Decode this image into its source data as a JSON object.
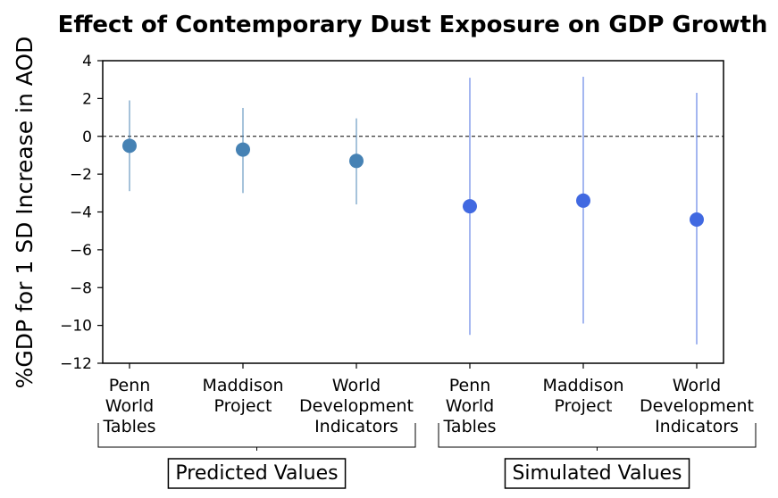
{
  "chart_data": {
    "type": "scatter",
    "title": "Effect of Contemporary Dust Exposure on GDP Growth",
    "ylabel": "%GDP for 1 SD Increase in AOD",
    "xlabel": "",
    "ylim": [
      -12,
      4
    ],
    "yticks": [
      4,
      2,
      0,
      -2,
      -4,
      -6,
      -8,
      -10,
      -12
    ],
    "categories": [
      [
        "Penn",
        "World",
        "Tables"
      ],
      [
        "Maddison",
        "Project"
      ],
      [
        "World",
        "Development",
        "Indicators"
      ],
      [
        "Penn",
        "World",
        "Tables"
      ],
      [
        "Maddison",
        "Project"
      ],
      [
        "World",
        "Development",
        "Indicators"
      ]
    ],
    "groups": [
      {
        "name": "Predicted Values",
        "members": [
          0,
          1,
          2
        ]
      },
      {
        "name": "Simulated Values",
        "members": [
          3,
          4,
          5
        ]
      }
    ],
    "series": [
      {
        "name": "Predicted Values",
        "color": "#4682b4",
        "points": [
          {
            "x": 0,
            "y": -0.5,
            "lo": -2.9,
            "hi": 1.9
          },
          {
            "x": 1,
            "y": -0.7,
            "lo": -3.0,
            "hi": 1.5
          },
          {
            "x": 2,
            "y": -1.3,
            "lo": -3.6,
            "hi": 0.95
          }
        ]
      },
      {
        "name": "Simulated Values",
        "color": "#4169e1",
        "points": [
          {
            "x": 3,
            "y": -3.7,
            "lo": -10.5,
            "hi": 3.1
          },
          {
            "x": 4,
            "y": -3.4,
            "lo": -9.9,
            "hi": 3.15
          },
          {
            "x": 5,
            "y": -4.4,
            "lo": -11.0,
            "hi": 2.3
          }
        ]
      }
    ],
    "reference_line": {
      "y": 0,
      "style": "dashed"
    },
    "grid": false
  }
}
